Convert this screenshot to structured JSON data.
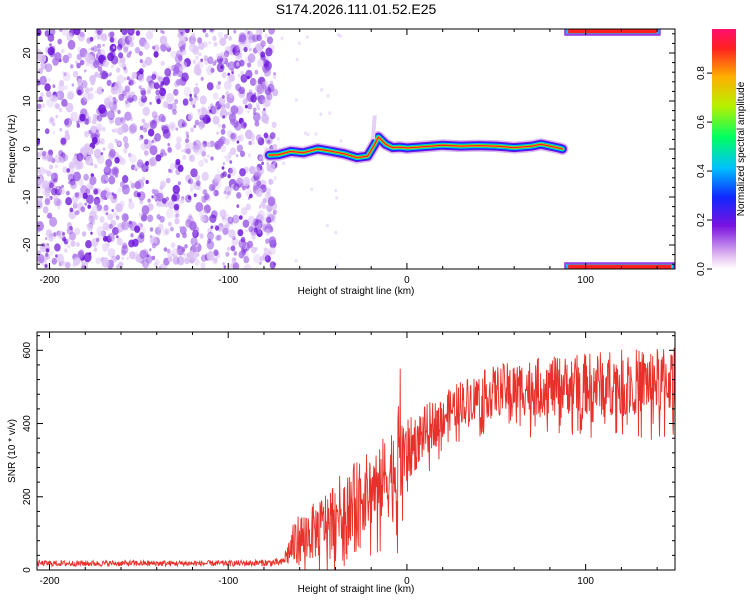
{
  "title": "S174.2026.111.01.52.E25",
  "chart_data": [
    {
      "type": "heatmap",
      "name": "spectrogram",
      "xlabel": "Height of straight line (km)",
      "ylabel": "Frequency (Hz)",
      "xlim": [
        -207,
        150
      ],
      "ylim": [
        -25,
        25
      ],
      "xticks": [
        -200,
        -100,
        0,
        100
      ],
      "yticks": [
        -20,
        -10,
        0,
        10,
        20
      ],
      "noise_region_x": [
        -207,
        -77
      ],
      "ridge": {
        "x": [
          -77,
          -72,
          -65,
          -58,
          -50,
          -42,
          -35,
          -28,
          -22,
          -18,
          -16,
          -12,
          -8,
          -4,
          0,
          10,
          20,
          30,
          40,
          50,
          60,
          70,
          75,
          80,
          85,
          87
        ],
        "freq": [
          -1.3,
          -1.2,
          -0.5,
          -0.8,
          0.0,
          -0.5,
          -1.0,
          -1.8,
          -1.5,
          1.0,
          2.5,
          1.0,
          0.3,
          0.4,
          0.2,
          0.5,
          0.8,
          0.6,
          0.7,
          0.6,
          0.3,
          0.6,
          1.0,
          0.6,
          0.2,
          0.0
        ]
      },
      "edge_patches": [
        {
          "x": [
            88,
            142
          ],
          "freq": [
            24,
            25
          ]
        },
        {
          "x": [
            88,
            150
          ],
          "freq": [
            -25,
            -24
          ]
        }
      ],
      "colorbar": {
        "label": "Normalized spectral amplitude",
        "ticks": [
          0.0,
          0.2,
          0.4,
          0.6,
          0.8
        ],
        "tick_labels": [
          "0.0",
          "0.2",
          "0.4",
          "0.6",
          "0.8"
        ],
        "range": [
          0,
          0.98
        ]
      }
    },
    {
      "type": "line",
      "name": "snr",
      "xlabel": "Height of straight line (km)",
      "ylabel": "SNR (10 * v/v)",
      "xlim": [
        -207,
        150
      ],
      "ylim": [
        0,
        650
      ],
      "xticks": [
        -200,
        -100,
        0,
        100
      ],
      "yticks": [
        0,
        200,
        400,
        600
      ],
      "color": "#e8312a",
      "envelope": {
        "x": [
          -207,
          -150,
          -100,
          -70,
          -62,
          -50,
          -40,
          -30,
          -20,
          -10,
          -5,
          0,
          10,
          20,
          30,
          50,
          70,
          90,
          110,
          130,
          150
        ],
        "mean": [
          18,
          18,
          18,
          20,
          80,
          110,
          160,
          190,
          220,
          260,
          300,
          320,
          380,
          420,
          460,
          490,
          500,
          505,
          510,
          515,
          520
        ],
        "amp": [
          8,
          8,
          8,
          10,
          70,
          80,
          90,
          100,
          110,
          120,
          150,
          90,
          70,
          60,
          60,
          70,
          80,
          80,
          90,
          90,
          90
        ]
      }
    }
  ]
}
